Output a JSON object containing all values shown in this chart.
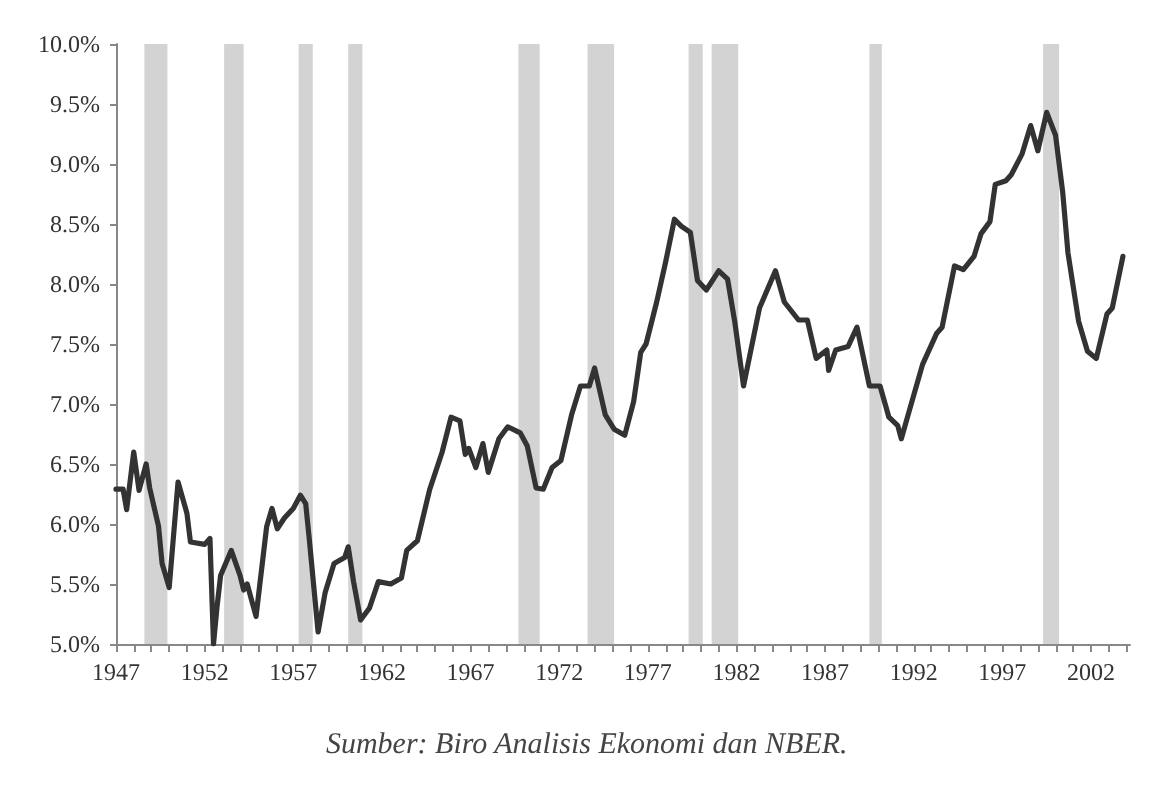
{
  "chart_data": {
    "type": "line",
    "annotations": [
      "Sumber: Biro Analisis Ekonomi dan NBER."
    ],
    "x": [
      1947.0,
      1947.4,
      1947.6,
      1948.0,
      1948.3,
      1948.7,
      1948.9,
      1949.4,
      1949.6,
      1950.0,
      1950.5,
      1951.0,
      1951.2,
      1952.0,
      1952.3,
      1952.5,
      1952.7,
      1952.9,
      1953.5,
      1954.0,
      1954.2,
      1954.4,
      1954.9,
      1955.5,
      1955.8,
      1956.1,
      1956.5,
      1957.0,
      1957.4,
      1957.7,
      1957.9,
      1958.4,
      1958.8,
      1959.3,
      1959.9,
      1960.1,
      1960.4,
      1960.8,
      1961.3,
      1961.8,
      1962.5,
      1963.1,
      1963.4,
      1964.0,
      1964.7,
      1965.4,
      1965.9,
      1966.4,
      1966.7,
      1966.9,
      1967.3,
      1967.7,
      1968.0,
      1968.6,
      1969.1,
      1969.8,
      1970.2,
      1970.7,
      1971.1,
      1971.6,
      1972.1,
      1972.7,
      1973.2,
      1973.7,
      1974.0,
      1974.6,
      1975.1,
      1975.7,
      1976.2,
      1976.6,
      1976.9,
      1977.5,
      1978.0,
      1978.5,
      1978.9,
      1979.4,
      1979.8,
      1980.3,
      1981.0,
      1981.5,
      1981.9,
      1982.4,
      1983.3,
      1984.2,
      1984.7,
      1985.5,
      1986.0,
      1986.5,
      1987.1,
      1987.2,
      1987.6,
      1988.3,
      1988.8,
      1989.5,
      1990.1,
      1990.6,
      1991.1,
      1991.3,
      1991.8,
      1992.5,
      1993.3,
      1993.6,
      1994.3,
      1994.8,
      1995.4,
      1995.8,
      1996.3,
      1996.6,
      1997.2,
      1997.5,
      1998.1,
      1998.6,
      1999.0,
      1999.5,
      2000.0,
      2000.4,
      2000.7,
      2001.3,
      2001.8,
      2002.3,
      2002.9,
      2003.2,
      2003.8
    ],
    "series": [
      {
        "color": "#333333",
        "values": [
          6.29,
          6.29,
          6.12,
          6.6,
          6.28,
          6.5,
          6.3,
          5.98,
          5.67,
          5.47,
          6.35,
          6.09,
          5.85,
          5.83,
          5.88,
          5.0,
          5.31,
          5.57,
          5.78,
          5.57,
          5.45,
          5.5,
          5.23,
          5.98,
          6.13,
          5.96,
          6.05,
          6.13,
          6.24,
          6.17,
          5.88,
          5.1,
          5.43,
          5.67,
          5.72,
          5.81,
          5.52,
          5.2,
          5.3,
          5.52,
          5.5,
          5.55,
          5.78,
          5.86,
          6.29,
          6.6,
          6.89,
          6.86,
          6.58,
          6.63,
          6.47,
          6.67,
          6.43,
          6.71,
          6.81,
          6.76,
          6.65,
          6.3,
          6.29,
          6.47,
          6.53,
          6.91,
          7.15,
          7.15,
          7.3,
          6.91,
          6.79,
          6.74,
          7.02,
          7.43,
          7.5,
          7.85,
          8.18,
          8.54,
          8.48,
          8.43,
          8.03,
          7.95,
          8.11,
          8.04,
          7.69,
          7.15,
          7.8,
          8.11,
          7.85,
          7.7,
          7.7,
          7.38,
          7.45,
          7.28,
          7.45,
          7.48,
          7.64,
          7.15,
          7.15,
          6.89,
          6.82,
          6.71,
          6.97,
          7.33,
          7.59,
          7.64,
          8.15,
          8.12,
          8.23,
          8.42,
          8.52,
          8.83,
          8.86,
          8.91,
          9.08,
          9.32,
          9.11,
          9.43,
          9.24,
          8.77,
          8.26,
          7.69,
          7.44,
          7.38,
          7.75,
          7.8,
          8.23
        ]
      }
    ],
    "xlim": [
      1947,
      2004.2
    ],
    "xticks": [
      1947,
      {
        "value": 1948,
        "label": null
      },
      {
        "value": 1949,
        "label": null
      },
      {
        "value": 1950,
        "label": null
      },
      {
        "value": 1951,
        "label": null
      },
      1952,
      {
        "value": 1953,
        "label": null
      },
      {
        "value": 1954,
        "label": null
      },
      {
        "value": 1955,
        "label": null
      },
      {
        "value": 1956,
        "label": null
      },
      1957,
      {
        "value": 1958,
        "label": null
      },
      {
        "value": 1959,
        "label": null
      },
      {
        "value": 1960,
        "label": null
      },
      {
        "value": 1961,
        "label": null
      },
      1962,
      {
        "value": 1963,
        "label": null
      },
      {
        "value": 1964,
        "label": null
      },
      {
        "value": 1965,
        "label": null
      },
      {
        "value": 1966,
        "label": null
      },
      1967,
      {
        "value": 1968,
        "label": null
      },
      {
        "value": 1969,
        "label": null
      },
      {
        "value": 1970,
        "label": null
      },
      {
        "value": 1971,
        "label": null
      },
      1972,
      {
        "value": 1973,
        "label": null
      },
      {
        "value": 1974,
        "label": null
      },
      {
        "value": 1975,
        "label": null
      },
      {
        "value": 1976,
        "label": null
      },
      1977,
      {
        "value": 1978,
        "label": null
      },
      {
        "value": 1979,
        "label": null
      },
      {
        "value": 1980,
        "label": null
      },
      {
        "value": 1981,
        "label": null
      },
      1982,
      {
        "value": 1983,
        "label": null
      },
      {
        "value": 1984,
        "label": null
      },
      {
        "value": 1985,
        "label": null
      },
      {
        "value": 1986,
        "label": null
      },
      1987,
      {
        "value": 1988,
        "label": null
      },
      {
        "value": 1989,
        "label": null
      },
      {
        "value": 1990,
        "label": null
      },
      {
        "value": 1991,
        "label": null
      },
      1992,
      {
        "value": 1993,
        "label": null
      },
      {
        "value": 1994,
        "label": null
      },
      {
        "value": 1995,
        "label": null
      },
      {
        "value": 1996,
        "label": null
      },
      1997,
      {
        "value": 1998,
        "label": null
      },
      {
        "value": 1999,
        "label": null
      },
      {
        "value": 2000,
        "label": null
      },
      {
        "value": 2001,
        "label": null
      },
      2002,
      {
        "value": 2003,
        "label": null
      },
      {
        "value": 2004,
        "label": null
      }
    ],
    "ylim": [
      5,
      10
    ],
    "yticks": [
      {
        "value": 5,
        "label": "5.0%"
      },
      {
        "value": 5.5,
        "label": "5.5%"
      },
      {
        "value": 6,
        "label": "6.0%"
      },
      {
        "value": 6.5,
        "label": "6.5%"
      },
      {
        "value": 7,
        "label": "7.0%"
      },
      {
        "value": 7.5,
        "label": "7.5%"
      },
      {
        "value": 8,
        "label": "8.0%"
      },
      {
        "value": 8.5,
        "label": "8.5%"
      },
      {
        "value": 9,
        "label": "9.0%"
      },
      {
        "value": 9.5,
        "label": "9.5%"
      },
      {
        "value": 10,
        "label": "10.0%"
      }
    ],
    "bands": [
      {
        "axis": "x",
        "from": 1948.6,
        "to": 1949.9,
        "color": "#d3d3d3"
      },
      {
        "axis": "x",
        "from": 1953.1,
        "to": 1954.2,
        "color": "#d3d3d3"
      },
      {
        "axis": "x",
        "from": 1957.3,
        "to": 1958.1,
        "color": "#d3d3d3"
      },
      {
        "axis": "x",
        "from": 1960.1,
        "to": 1960.9,
        "color": "#d3d3d3"
      },
      {
        "axis": "x",
        "from": 1969.7,
        "to": 1970.9,
        "color": "#d3d3d3"
      },
      {
        "axis": "x",
        "from": 1973.6,
        "to": 1975.1,
        "color": "#d3d3d3"
      },
      {
        "axis": "x",
        "from": 1979.3,
        "to": 1980.1,
        "color": "#d3d3d3"
      },
      {
        "axis": "x",
        "from": 1980.6,
        "to": 1982.1,
        "color": "#d3d3d3"
      },
      {
        "axis": "x",
        "from": 1989.5,
        "to": 1990.2,
        "color": "#d3d3d3"
      },
      {
        "axis": "x",
        "from": 1999.3,
        "to": 2000.2,
        "color": "#d3d3d3"
      }
    ],
    "grid": false,
    "marker": "none",
    "line_style": "solid"
  }
}
